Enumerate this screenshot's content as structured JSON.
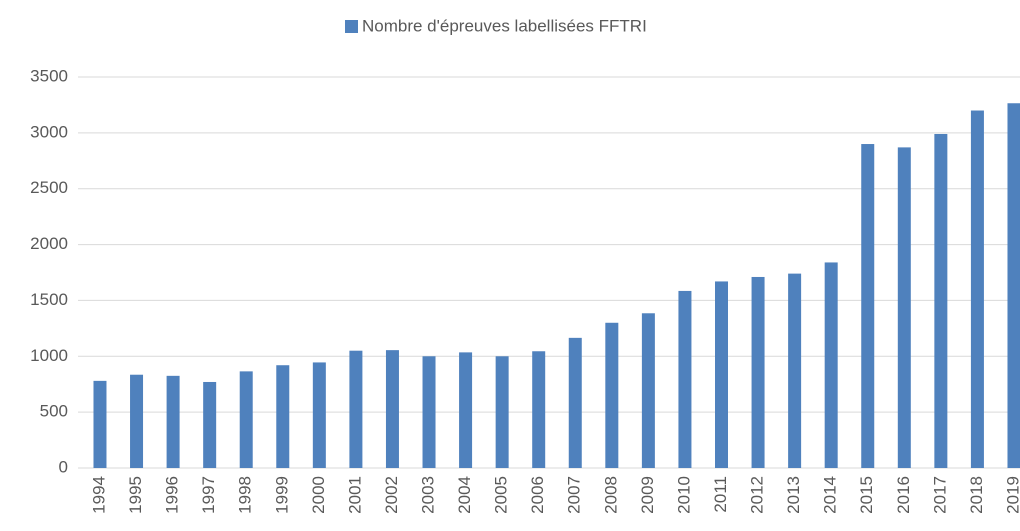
{
  "chart_data": {
    "type": "bar",
    "categories": [
      "1994",
      "1995",
      "1996",
      "1997",
      "1998",
      "1999",
      "2000",
      "2001",
      "2002",
      "2003",
      "2004",
      "2005",
      "2006",
      "2007",
      "2008",
      "2009",
      "2010",
      "2011",
      "2012",
      "2013",
      "2014",
      "2015",
      "2016",
      "2017",
      "2018",
      "2019"
    ],
    "series": [
      {
        "name": "Nombre d'épreuves labellisées FFTRI",
        "color": "#4f81bd",
        "values": [
          780,
          835,
          825,
          770,
          865,
          920,
          945,
          1050,
          1055,
          1000,
          1035,
          1000,
          1045,
          1165,
          1300,
          1385,
          1585,
          1670,
          1710,
          1740,
          1840,
          2900,
          2870,
          2990,
          3200,
          3265
        ]
      }
    ],
    "ylim": [
      0,
      3500
    ],
    "yticks": [
      0,
      500,
      1000,
      1500,
      2000,
      2500,
      3000,
      3500
    ],
    "grid": true,
    "legend": "top"
  }
}
